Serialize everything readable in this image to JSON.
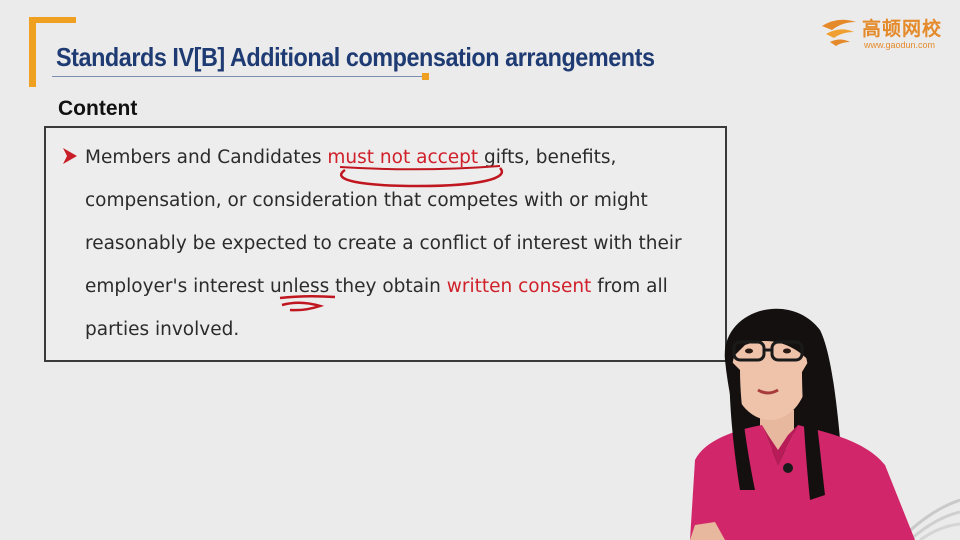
{
  "slide": {
    "title": "Standards IV[B] Additional compensation arrangements",
    "section_heading": "Content",
    "bullet": {
      "segments": [
        {
          "text": "Members and Candidates ",
          "highlight": false
        },
        {
          "text": "must not accept",
          "highlight": true
        },
        {
          "text": " gifts, benefits, compensation, or consideration that competes with or might reasonably be expected to create a conflict of interest with their employer's interest ",
          "highlight": false
        },
        {
          "text": "unless",
          "highlight": false
        },
        {
          "text": " they obtain ",
          "highlight": false
        },
        {
          "text": "written consent",
          "highlight": true
        },
        {
          "text": " from all parties involved.",
          "highlight": false
        }
      ]
    }
  },
  "logo": {
    "name": "高顿网校",
    "url": "www.gaodun.com"
  },
  "colors": {
    "title": "#1f3b73",
    "accent_orange": "#f0a020",
    "highlight_red": "#d0202a",
    "background": "#ebebeb"
  },
  "icons": {
    "bullet": "arrow-bullet-icon",
    "annotation": "red-pen-annotation",
    "presenter": "presenter-video-overlay"
  }
}
